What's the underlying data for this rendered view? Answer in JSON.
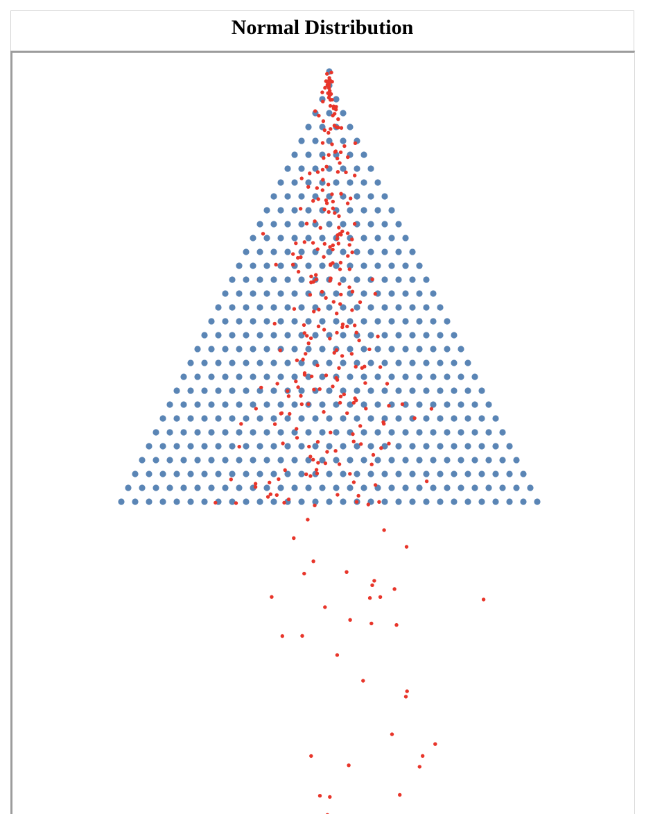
{
  "window": {
    "title": "Normal Distribution"
  },
  "colors": {
    "page_background": "#ffffff",
    "peg": "#5a85b5",
    "ball": "#e8352a",
    "board_border": "#9c9c9c",
    "header_border": "#d4d4d4",
    "title_text": "#000000"
  },
  "board": {
    "peg_row_count": 32,
    "ball_count": 300,
    "top_row_pegs": 1,
    "bottom_row_pegs": 30
  }
}
